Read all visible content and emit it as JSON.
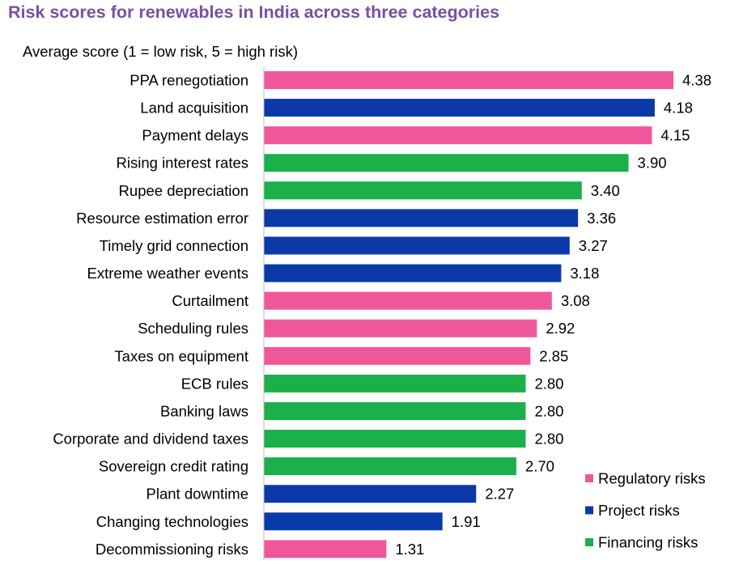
{
  "chart_data": {
    "type": "bar",
    "orientation": "horizontal",
    "title": "Risk scores for renewables in India across three categories",
    "subtitle": "Average score (1 = low risk, 5 = high risk)",
    "grid": false,
    "legend_position": "bottom-right",
    "categories": [
      "PPA renegotiation",
      "Land acquisition",
      "Payment delays",
      "Rising interest rates",
      "Rupee depreciation",
      "Resource estimation error",
      "Timely grid connection",
      "Extreme weather events",
      "Curtailment",
      "Scheduling rules",
      "Taxes on equipment",
      "ECB rules",
      "Banking laws",
      "Corporate and dividend taxes",
      "Sovereign credit rating",
      "Plant downtime",
      "Changing technologies",
      "Decommissioning risks"
    ],
    "values": [
      4.38,
      4.18,
      4.15,
      3.9,
      3.4,
      3.36,
      3.27,
      3.18,
      3.08,
      2.92,
      2.85,
      2.8,
      2.8,
      2.8,
      2.7,
      2.27,
      1.91,
      1.31
    ],
    "value_labels": [
      "4.38",
      "4.18",
      "4.15",
      "3.90",
      "3.40",
      "3.36",
      "3.27",
      "3.18",
      "3.08",
      "2.92",
      "2.85",
      "2.80",
      "2.80",
      "2.80",
      "2.70",
      "2.27",
      "1.91",
      "1.31"
    ],
    "bar_series": [
      "Regulatory risks",
      "Project risks",
      "Regulatory risks",
      "Financing risks",
      "Financing risks",
      "Project risks",
      "Project risks",
      "Project risks",
      "Regulatory risks",
      "Regulatory risks",
      "Regulatory risks",
      "Financing risks",
      "Financing risks",
      "Financing risks",
      "Financing risks",
      "Project risks",
      "Project risks",
      "Regulatory risks"
    ],
    "series": [
      {
        "name": "Regulatory risks",
        "color": "#f0579b"
      },
      {
        "name": "Project risks",
        "color": "#0b3aa8"
      },
      {
        "name": "Financing risks",
        "color": "#1bb04a"
      }
    ],
    "xlim": [
      0,
      4.38
    ]
  }
}
